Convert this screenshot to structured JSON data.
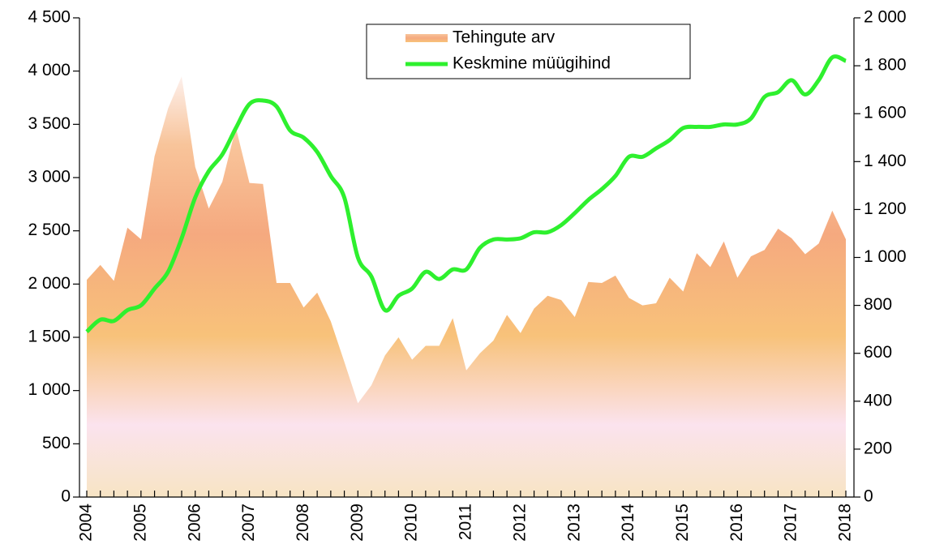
{
  "chart_data": {
    "type": "combo",
    "categories": [
      "2004",
      null,
      null,
      null,
      "2005",
      null,
      null,
      null,
      "2006",
      null,
      null,
      null,
      "2007",
      null,
      null,
      null,
      "2008",
      null,
      null,
      null,
      "2009",
      null,
      null,
      null,
      "2010",
      null,
      null,
      null,
      "2011",
      null,
      null,
      null,
      "2012",
      null,
      null,
      null,
      "2013",
      null,
      null,
      null,
      "2014",
      null,
      null,
      null,
      "2015",
      null,
      null,
      null,
      "2016",
      null,
      null,
      null,
      "2017",
      null,
      null,
      null,
      "2018"
    ],
    "series": [
      {
        "name": "Tehingute arv",
        "type": "area",
        "color": "#f5a97f",
        "values": [
          2040,
          2180,
          2030,
          2530,
          2420,
          3200,
          3650,
          3950,
          3100,
          2710,
          2960,
          3470,
          2950,
          2940,
          2010,
          2010,
          1780,
          1920,
          1650,
          1270,
          880,
          1050,
          1330,
          1500,
          1290,
          1420,
          1420,
          1680,
          1190,
          1350,
          1470,
          1710,
          1540,
          1770,
          1890,
          1850,
          1690,
          2020,
          2010,
          2080,
          1870,
          1800,
          1820,
          2060,
          1930,
          2290,
          2160,
          2400,
          2060,
          2260,
          2320,
          2520,
          2430,
          2280,
          2380,
          2690,
          2420
        ]
      },
      {
        "name": "Keskmine müügihind",
        "type": "line",
        "axis": "y2",
        "color": "#2ef02e",
        "values": [
          690,
          740,
          735,
          780,
          800,
          870,
          940,
          1080,
          1250,
          1360,
          1430,
          1540,
          1640,
          1655,
          1630,
          1530,
          1500,
          1440,
          1340,
          1250,
          1000,
          920,
          780,
          840,
          870,
          940,
          910,
          950,
          950,
          1040,
          1075,
          1075,
          1080,
          1105,
          1105,
          1135,
          1185,
          1240,
          1285,
          1340,
          1420,
          1420,
          1455,
          1490,
          1540,
          1545,
          1545,
          1555,
          1555,
          1580,
          1670,
          1690,
          1740,
          1680,
          1740,
          1835,
          1820
        ]
      }
    ],
    "ylim": [
      0,
      4500
    ],
    "yticks": [
      0,
      500,
      {
        "value": 1000,
        "label": "1 000"
      },
      {
        "value": 1500,
        "label": "1 500"
      },
      {
        "value": 2000,
        "label": "2 000"
      },
      {
        "value": 2500,
        "label": "2 500"
      },
      {
        "value": 3000,
        "label": "3 000"
      },
      {
        "value": 3500,
        "label": "3 500"
      },
      {
        "value": 4000,
        "label": "4 000"
      },
      {
        "value": 4500,
        "label": "4 500"
      }
    ],
    "y2lim": [
      0,
      2000
    ],
    "y2ticks": [
      0,
      200,
      400,
      600,
      800,
      {
        "value": 1000,
        "label": "1 000"
      },
      {
        "value": 1200,
        "label": "1 200"
      },
      {
        "value": 1400,
        "label": "1 400"
      },
      {
        "value": 1600,
        "label": "1 600"
      },
      {
        "value": 1800,
        "label": "1 800"
      },
      {
        "value": 2000,
        "label": "2 000"
      }
    ],
    "grid": false,
    "legend": "top"
  }
}
